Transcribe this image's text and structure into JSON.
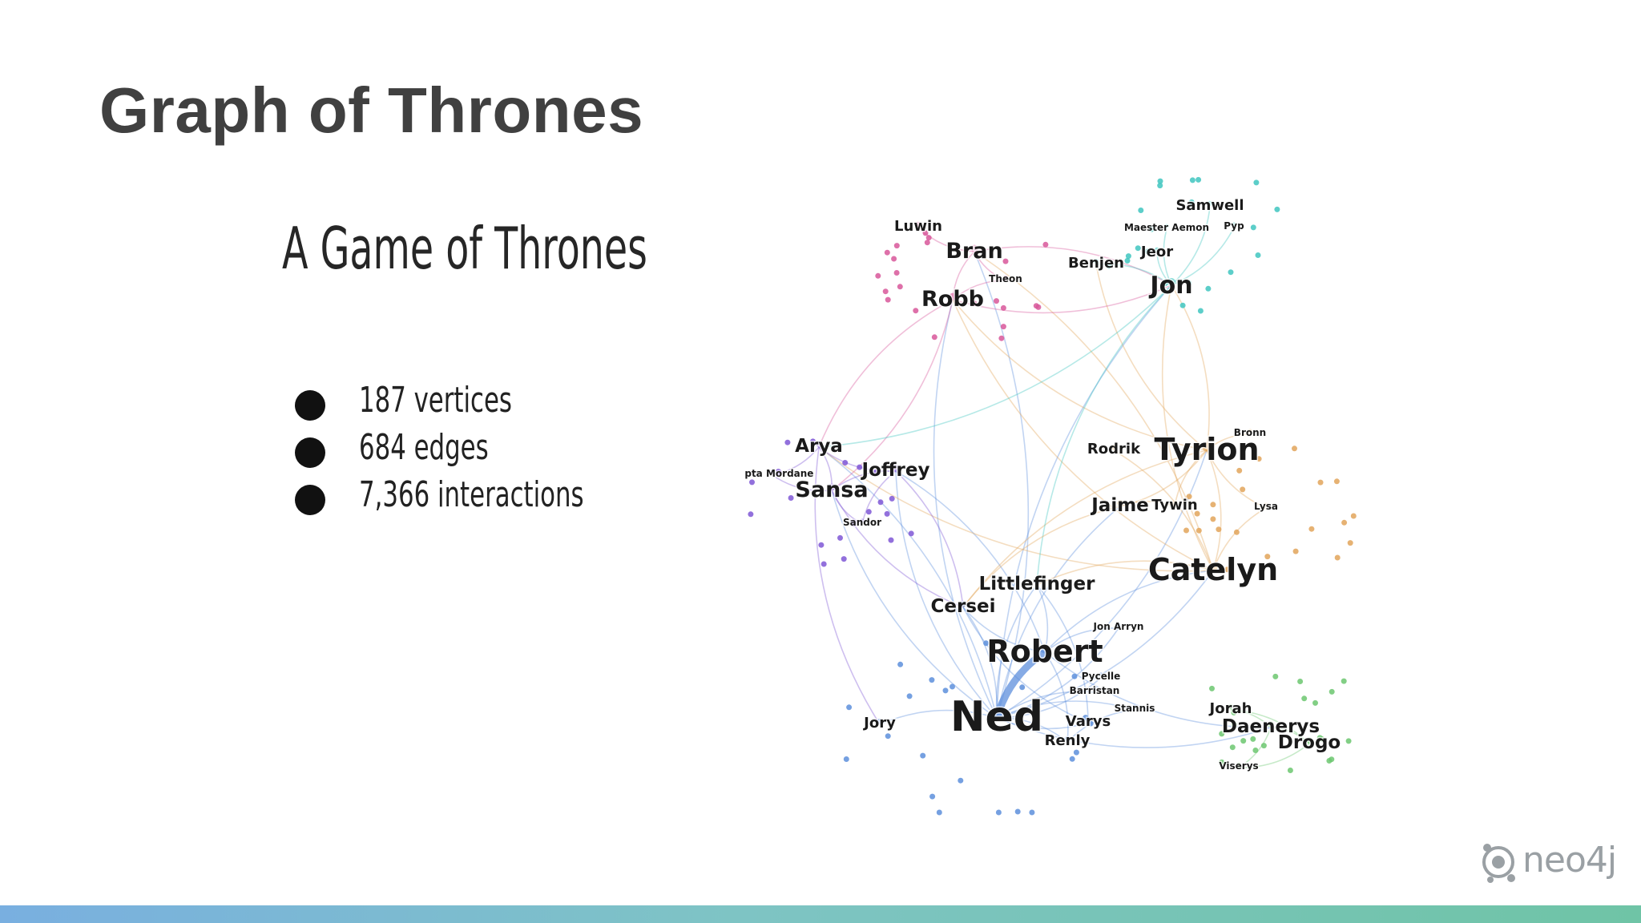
{
  "slide": {
    "title": "Graph of Thrones",
    "subtitle": "A Game of Thrones",
    "stats": [
      "187 vertices",
      "684 edges",
      "7,366 interactions"
    ],
    "logo_text": "neo4j"
  },
  "colors": {
    "title": "#404040",
    "footer_gradient": [
      "#79afe0",
      "#7ec4c4",
      "#6fc4a6"
    ],
    "cluster_north": "#d8579a",
    "cluster_wall": "#3fc6c0",
    "cluster_stark_girls": "#7f57d6",
    "cluster_lannister": "#e2a55a",
    "cluster_kingslanding": "#5d8fdc",
    "cluster_dothraki": "#6cc770"
  },
  "graph": {
    "nodes": [
      {
        "label": "Luwin",
        "group": "north",
        "weight": 2
      },
      {
        "label": "Bran",
        "group": "north",
        "weight": 4
      },
      {
        "label": "Theon",
        "group": "north",
        "weight": 1
      },
      {
        "label": "Robb",
        "group": "north",
        "weight": 4
      },
      {
        "label": "Samwell",
        "group": "wall",
        "weight": 2
      },
      {
        "label": "Maester Aemon",
        "group": "wall",
        "weight": 1
      },
      {
        "label": "Pyp",
        "group": "wall",
        "weight": 1
      },
      {
        "label": "Jeor",
        "group": "wall",
        "weight": 2
      },
      {
        "label": "Benjen",
        "group": "wall",
        "weight": 2
      },
      {
        "label": "Jon",
        "group": "wall",
        "weight": 5
      },
      {
        "label": "Arya",
        "group": "stark_girls",
        "weight": 3
      },
      {
        "label": "Septa Mordane",
        "group": "stark_girls",
        "weight": 1
      },
      {
        "label": "Joffrey",
        "group": "stark_girls",
        "weight": 3
      },
      {
        "label": "Sansa",
        "group": "stark_girls",
        "weight": 4
      },
      {
        "label": "Sandor",
        "group": "stark_girls",
        "weight": 1
      },
      {
        "label": "Rodrik",
        "group": "lannister",
        "weight": 2
      },
      {
        "label": "Tyrion",
        "group": "lannister",
        "weight": 6
      },
      {
        "label": "Bronn",
        "group": "lannister",
        "weight": 1
      },
      {
        "label": "Jaime",
        "group": "lannister",
        "weight": 3
      },
      {
        "label": "Tywin",
        "group": "lannister",
        "weight": 2
      },
      {
        "label": "Lysa",
        "group": "lannister",
        "weight": 1
      },
      {
        "label": "Catelyn",
        "group": "lannister",
        "weight": 6
      },
      {
        "label": "Littlefinger",
        "group": "kingslanding",
        "weight": 3
      },
      {
        "label": "Cersei",
        "group": "kingslanding",
        "weight": 3
      },
      {
        "label": "Jon Arryn",
        "group": "kingslanding",
        "weight": 1
      },
      {
        "label": "Robert",
        "group": "kingslanding",
        "weight": 6
      },
      {
        "label": "Pycelle",
        "group": "kingslanding",
        "weight": 1
      },
      {
        "label": "Barristan",
        "group": "kingslanding",
        "weight": 1
      },
      {
        "label": "Stannis",
        "group": "kingslanding",
        "weight": 1
      },
      {
        "label": "Jory",
        "group": "kingslanding",
        "weight": 2
      },
      {
        "label": "Ned",
        "group": "kingslanding",
        "weight": 8
      },
      {
        "label": "Varys",
        "group": "kingslanding",
        "weight": 2
      },
      {
        "label": "Renly",
        "group": "kingslanding",
        "weight": 2
      },
      {
        "label": "Jorah",
        "group": "dothraki",
        "weight": 2
      },
      {
        "label": "Daenerys",
        "group": "dothraki",
        "weight": 3
      },
      {
        "label": "Drogo",
        "group": "dothraki",
        "weight": 3
      },
      {
        "label": "Viserys",
        "group": "dothraki",
        "weight": 1
      }
    ],
    "edges": [
      [
        "Ned",
        "Robert"
      ],
      [
        "Ned",
        "Cersei"
      ],
      [
        "Ned",
        "Littlefinger"
      ],
      [
        "Ned",
        "Arya"
      ],
      [
        "Ned",
        "Sansa"
      ],
      [
        "Ned",
        "Catelyn"
      ],
      [
        "Ned",
        "Jon"
      ],
      [
        "Ned",
        "Bran"
      ],
      [
        "Ned",
        "Robb"
      ],
      [
        "Ned",
        "Varys"
      ],
      [
        "Ned",
        "Renly"
      ],
      [
        "Ned",
        "Jory"
      ],
      [
        "Ned",
        "Joffrey"
      ],
      [
        "Ned",
        "Tyrion"
      ],
      [
        "Ned",
        "Jaime"
      ],
      [
        "Ned",
        "Pycelle"
      ],
      [
        "Ned",
        "Barristan"
      ],
      [
        "Ned",
        "Jon Arryn"
      ],
      [
        "Ned",
        "Stannis"
      ],
      [
        "Ned",
        "Daenerys"
      ],
      [
        "Robert",
        "Cersei"
      ],
      [
        "Robert",
        "Joffrey"
      ],
      [
        "Robert",
        "Jon Arryn"
      ],
      [
        "Robert",
        "Daenerys"
      ],
      [
        "Robert",
        "Renly"
      ],
      [
        "Robert",
        "Littlefinger"
      ],
      [
        "Robert",
        "Catelyn"
      ],
      [
        "Catelyn",
        "Tyrion"
      ],
      [
        "Catelyn",
        "Robb"
      ],
      [
        "Catelyn",
        "Bran"
      ],
      [
        "Catelyn",
        "Lysa"
      ],
      [
        "Catelyn",
        "Rodrik"
      ],
      [
        "Catelyn",
        "Jon"
      ],
      [
        "Catelyn",
        "Littlefinger"
      ],
      [
        "Catelyn",
        "Arya"
      ],
      [
        "Tyrion",
        "Jon"
      ],
      [
        "Tyrion",
        "Jaime"
      ],
      [
        "Tyrion",
        "Tywin"
      ],
      [
        "Tyrion",
        "Bronn"
      ],
      [
        "Tyrion",
        "Cersei"
      ],
      [
        "Tyrion",
        "Robb"
      ],
      [
        "Tyrion",
        "Lysa"
      ],
      [
        "Tyrion",
        "Benjen"
      ],
      [
        "Bran",
        "Robb"
      ],
      [
        "Bran",
        "Luwin"
      ],
      [
        "Bran",
        "Theon"
      ],
      [
        "Bran",
        "Jon"
      ],
      [
        "Robb",
        "Jon"
      ],
      [
        "Robb",
        "Theon"
      ],
      [
        "Robb",
        "Arya"
      ],
      [
        "Robb",
        "Sansa"
      ],
      [
        "Jon",
        "Samwell"
      ],
      [
        "Jon",
        "Jeor"
      ],
      [
        "Jon",
        "Benjen"
      ],
      [
        "Jon",
        "Maester Aemon"
      ],
      [
        "Jon",
        "Pyp"
      ],
      [
        "Jon",
        "Arya"
      ],
      [
        "Jon",
        "Littlefinger"
      ],
      [
        "Arya",
        "Sansa"
      ],
      [
        "Arya",
        "Joffrey"
      ],
      [
        "Arya",
        "Septa Mordane"
      ],
      [
        "Arya",
        "Jory"
      ],
      [
        "Sansa",
        "Joffrey"
      ],
      [
        "Sansa",
        "Sandor"
      ],
      [
        "Sansa",
        "Septa Mordane"
      ],
      [
        "Sansa",
        "Cersei"
      ],
      [
        "Joffrey",
        "Cersei"
      ],
      [
        "Joffrey",
        "Sandor"
      ],
      [
        "Daenerys",
        "Drogo"
      ],
      [
        "Daenerys",
        "Jorah"
      ],
      [
        "Daenerys",
        "Viserys"
      ],
      [
        "Drogo",
        "Jorah"
      ],
      [
        "Drogo",
        "Viserys"
      ],
      [
        "Jaime",
        "Cersei"
      ],
      [
        "Jaime",
        "Tywin"
      ],
      [
        "Varys",
        "Littlefinger"
      ],
      [
        "Renly",
        "Stannis"
      ],
      [
        "Cersei",
        "Varys"
      ]
    ]
  }
}
